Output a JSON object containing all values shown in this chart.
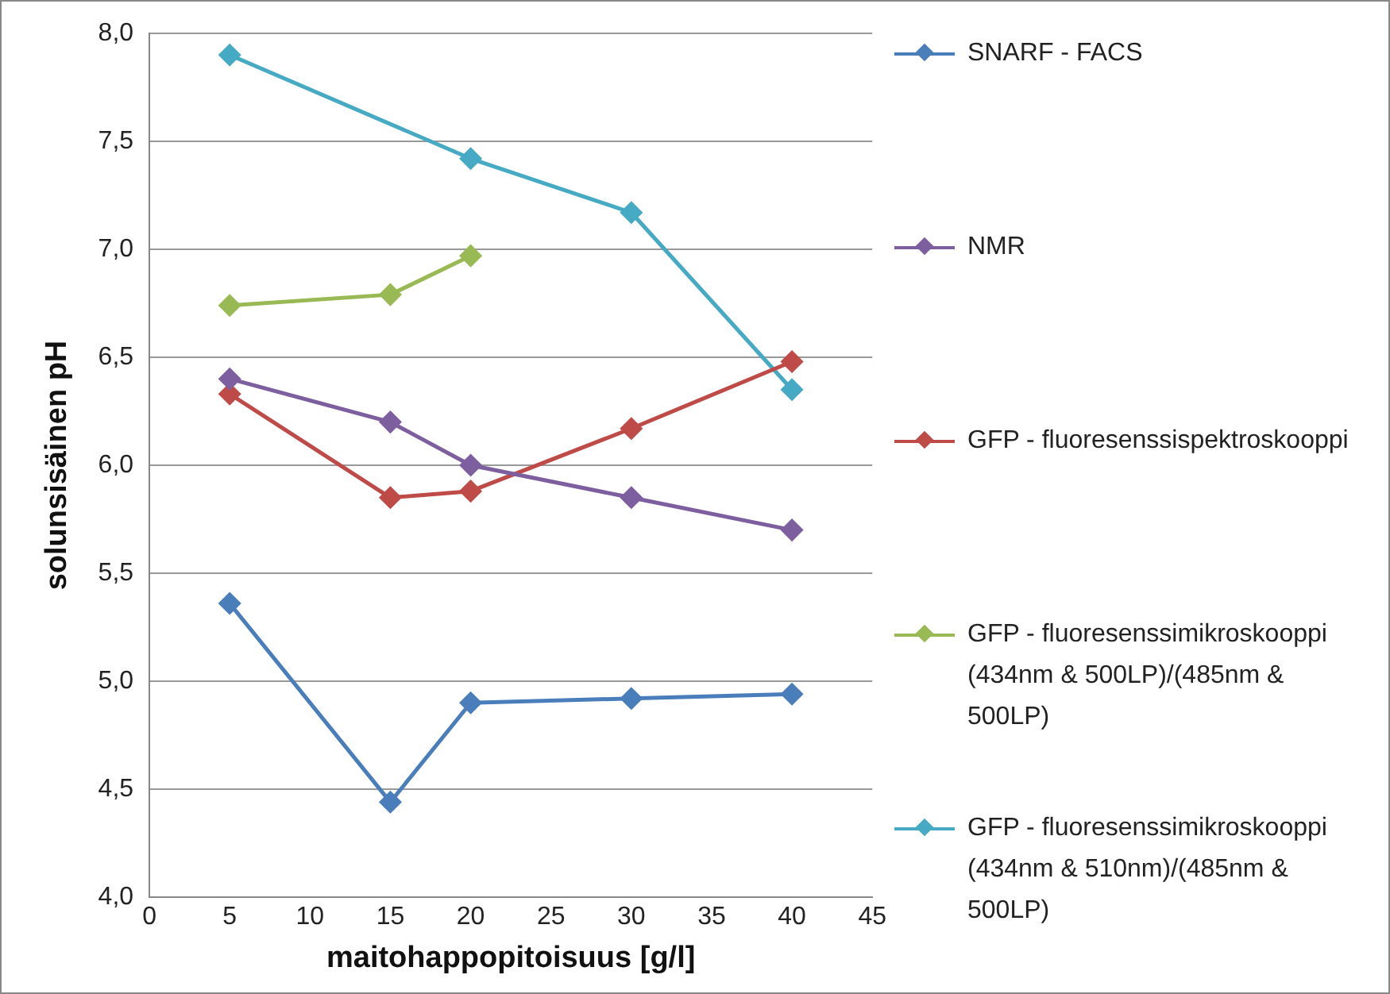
{
  "chart_data": {
    "type": "line",
    "xlabel": "maitohappopitoisuus [g/l]",
    "ylabel": "solunsisäinen pH",
    "x": [
      5,
      15,
      20,
      30,
      40
    ],
    "series": [
      {
        "name": "SNARF - FACS",
        "color": "#4a7ebb",
        "values": [
          5.36,
          4.44,
          4.9,
          4.92,
          4.94
        ]
      },
      {
        "name": "NMR",
        "color": "#7d5fa0",
        "values": [
          6.4,
          6.2,
          6.0,
          5.85,
          5.7
        ]
      },
      {
        "name": "GFP - fluoresenssispektroskooppi",
        "color": "#be4b48",
        "values": [
          6.33,
          5.85,
          5.88,
          6.17,
          6.48
        ]
      },
      {
        "name": "GFP - fluoresenssimikroskooppi (434nm & 500LP)/(485nm & 500LP)",
        "color": "#98b954",
        "values": [
          6.74,
          6.79,
          6.97,
          null,
          null
        ]
      },
      {
        "name": "GFP - fluoresenssimikroskooppi (434nm & 510nm)/(485nm & 500LP)",
        "color": "#46aac5",
        "values": [
          7.9,
          null,
          7.42,
          7.17,
          6.35
        ]
      }
    ],
    "xlim": [
      0,
      45
    ],
    "xticks": [
      0,
      5,
      10,
      15,
      20,
      25,
      30,
      35,
      40,
      45
    ],
    "ylim": [
      4,
      8
    ],
    "yticks": [
      {
        "value": 4,
        "label": "4,0"
      },
      {
        "value": 4.5,
        "label": "4,5"
      },
      {
        "value": 5,
        "label": "5,0"
      },
      {
        "value": 5.5,
        "label": "5,5"
      },
      {
        "value": 6,
        "label": "6,0"
      },
      {
        "value": 6.5,
        "label": "6,5"
      },
      {
        "value": 7,
        "label": "7,0"
      },
      {
        "value": 7.5,
        "label": "7,5"
      },
      {
        "value": 8,
        "label": "8,0"
      }
    ],
    "grid": "y",
    "legend": "right",
    "marker": "diamond",
    "line_style": "solid"
  }
}
